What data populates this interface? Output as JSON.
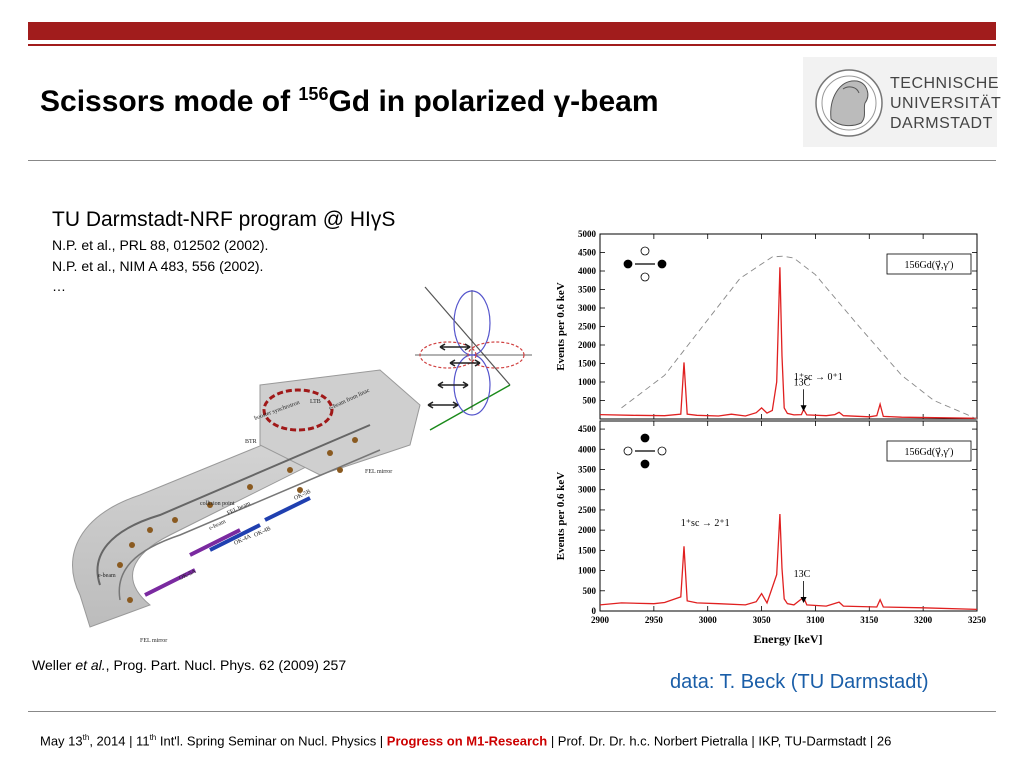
{
  "header": {
    "title_pre": "Scissors mode of ",
    "title_sup": "156",
    "title_post": "Gd in polarized γ-beam",
    "logo_lines": [
      "TECHNISCHE",
      "UNIVERSITÄT",
      "DARMSTADT"
    ]
  },
  "content": {
    "program_title": "TU Darmstadt-NRF program @ HIγS",
    "refs": [
      "N.P. et al., PRL 88, 012502 (2002).",
      "N.P. et al., NIM A 483, 556 (2002).",
      "…"
    ],
    "weller_pre": "Weller ",
    "weller_italic": "et al.",
    "weller_post": ", Prog. Part. Nucl. Phys. 62 (2009) 257",
    "credit": "data: T. Beck (TU Darmstadt)"
  },
  "facility_labels": [
    "booster synchrotron",
    "e-beam from linac",
    "LTB",
    "BTR",
    "collision point",
    "FEL beam",
    "e-beam",
    "OK-4A",
    "OK-4B",
    "OK-5B",
    "OK-5A",
    "e-beam",
    "FEL mirror",
    "FEL mirror"
  ],
  "footer": {
    "date_pre": "May 13",
    "date_sup": "th",
    "date_post": ", 2014 | 11",
    "conf_sup": "th",
    "conf_post": " Int'l. Spring Seminar on Nucl. Physics | ",
    "highlight": "Progress on M1-Research",
    "rest": " |  Prof. Dr. Dr. h.c. Norbert Pietralla  | IKP, TU-Darmstadt |   26"
  },
  "chart_data": [
    {
      "type": "line",
      "reaction": "156Gd(γ⃗,γ′)",
      "ylabel": "Events per 0.6 keV",
      "xlim": [
        2900,
        3250
      ],
      "ylim": [
        0,
        5000
      ],
      "yticks": [
        500,
        1000,
        1500,
        2000,
        2500,
        3000,
        3500,
        4000,
        4500,
        5000
      ],
      "annotations": [
        {
          "text": "1⁺sc → 0⁺1",
          "x": 3080,
          "y": 1050
        },
        {
          "text": "13C",
          "x": 3089,
          "y": 100
        }
      ],
      "series": [
        {
          "name": "spectrum",
          "color": "#e02020",
          "x": [
            2900,
            2930,
            2960,
            2975,
            2978,
            2981,
            2990,
            3010,
            3022,
            3035,
            3045,
            3050,
            3055,
            3060,
            3064,
            3067,
            3069,
            3071,
            3074,
            3080,
            3087,
            3089,
            3092,
            3110,
            3118,
            3122,
            3126,
            3150,
            3157,
            3160,
            3163,
            3180,
            3250
          ],
          "y": [
            120,
            100,
            90,
            130,
            1530,
            130,
            100,
            80,
            130,
            80,
            170,
            300,
            160,
            230,
            1000,
            4100,
            1700,
            300,
            150,
            110,
            120,
            260,
            110,
            90,
            120,
            180,
            90,
            60,
            90,
            400,
            70,
            50,
            20
          ]
        },
        {
          "name": "beam profile",
          "color": "#888888",
          "dashed": true,
          "x": [
            2920,
            2960,
            3000,
            3030,
            3060,
            3070,
            3080,
            3100,
            3140,
            3180,
            3210,
            3240,
            3250
          ],
          "y": [
            300,
            1180,
            2680,
            3800,
            4380,
            4400,
            4350,
            3900,
            2520,
            1180,
            500,
            130,
            0
          ]
        }
      ]
    },
    {
      "type": "line",
      "reaction": "156Gd(γ⃗,γ′)",
      "xlabel": "Energy [keV]",
      "ylabel": "Events per 0.6 keV",
      "xlim": [
        2900,
        3250
      ],
      "ylim": [
        0,
        4700
      ],
      "xticks": [
        2900,
        2950,
        3000,
        3050,
        3100,
        3150,
        3200,
        3250
      ],
      "yticks": [
        0,
        500,
        1000,
        1500,
        2000,
        2500,
        3000,
        3500,
        4000,
        4500
      ],
      "annotations": [
        {
          "text": "1⁺sc → 2⁺1",
          "x": 2975,
          "y": 2100
        },
        {
          "text": "13C",
          "x": 3089,
          "y": 100
        }
      ],
      "series": [
        {
          "name": "spectrum",
          "color": "#e02020",
          "x": [
            2900,
            2920,
            2950,
            2960,
            2975,
            2978,
            2981,
            2990,
            3010,
            3035,
            3045,
            3050,
            3055,
            3064,
            3067,
            3069,
            3071,
            3074,
            3080,
            3089,
            3092,
            3110,
            3122,
            3126,
            3157,
            3160,
            3163,
            3200,
            3250
          ],
          "y": [
            150,
            200,
            180,
            210,
            350,
            1600,
            250,
            200,
            180,
            150,
            230,
            430,
            200,
            900,
            2400,
            1050,
            300,
            180,
            150,
            340,
            150,
            120,
            220,
            120,
            100,
            280,
            100,
            80,
            40
          ]
        }
      ]
    }
  ]
}
